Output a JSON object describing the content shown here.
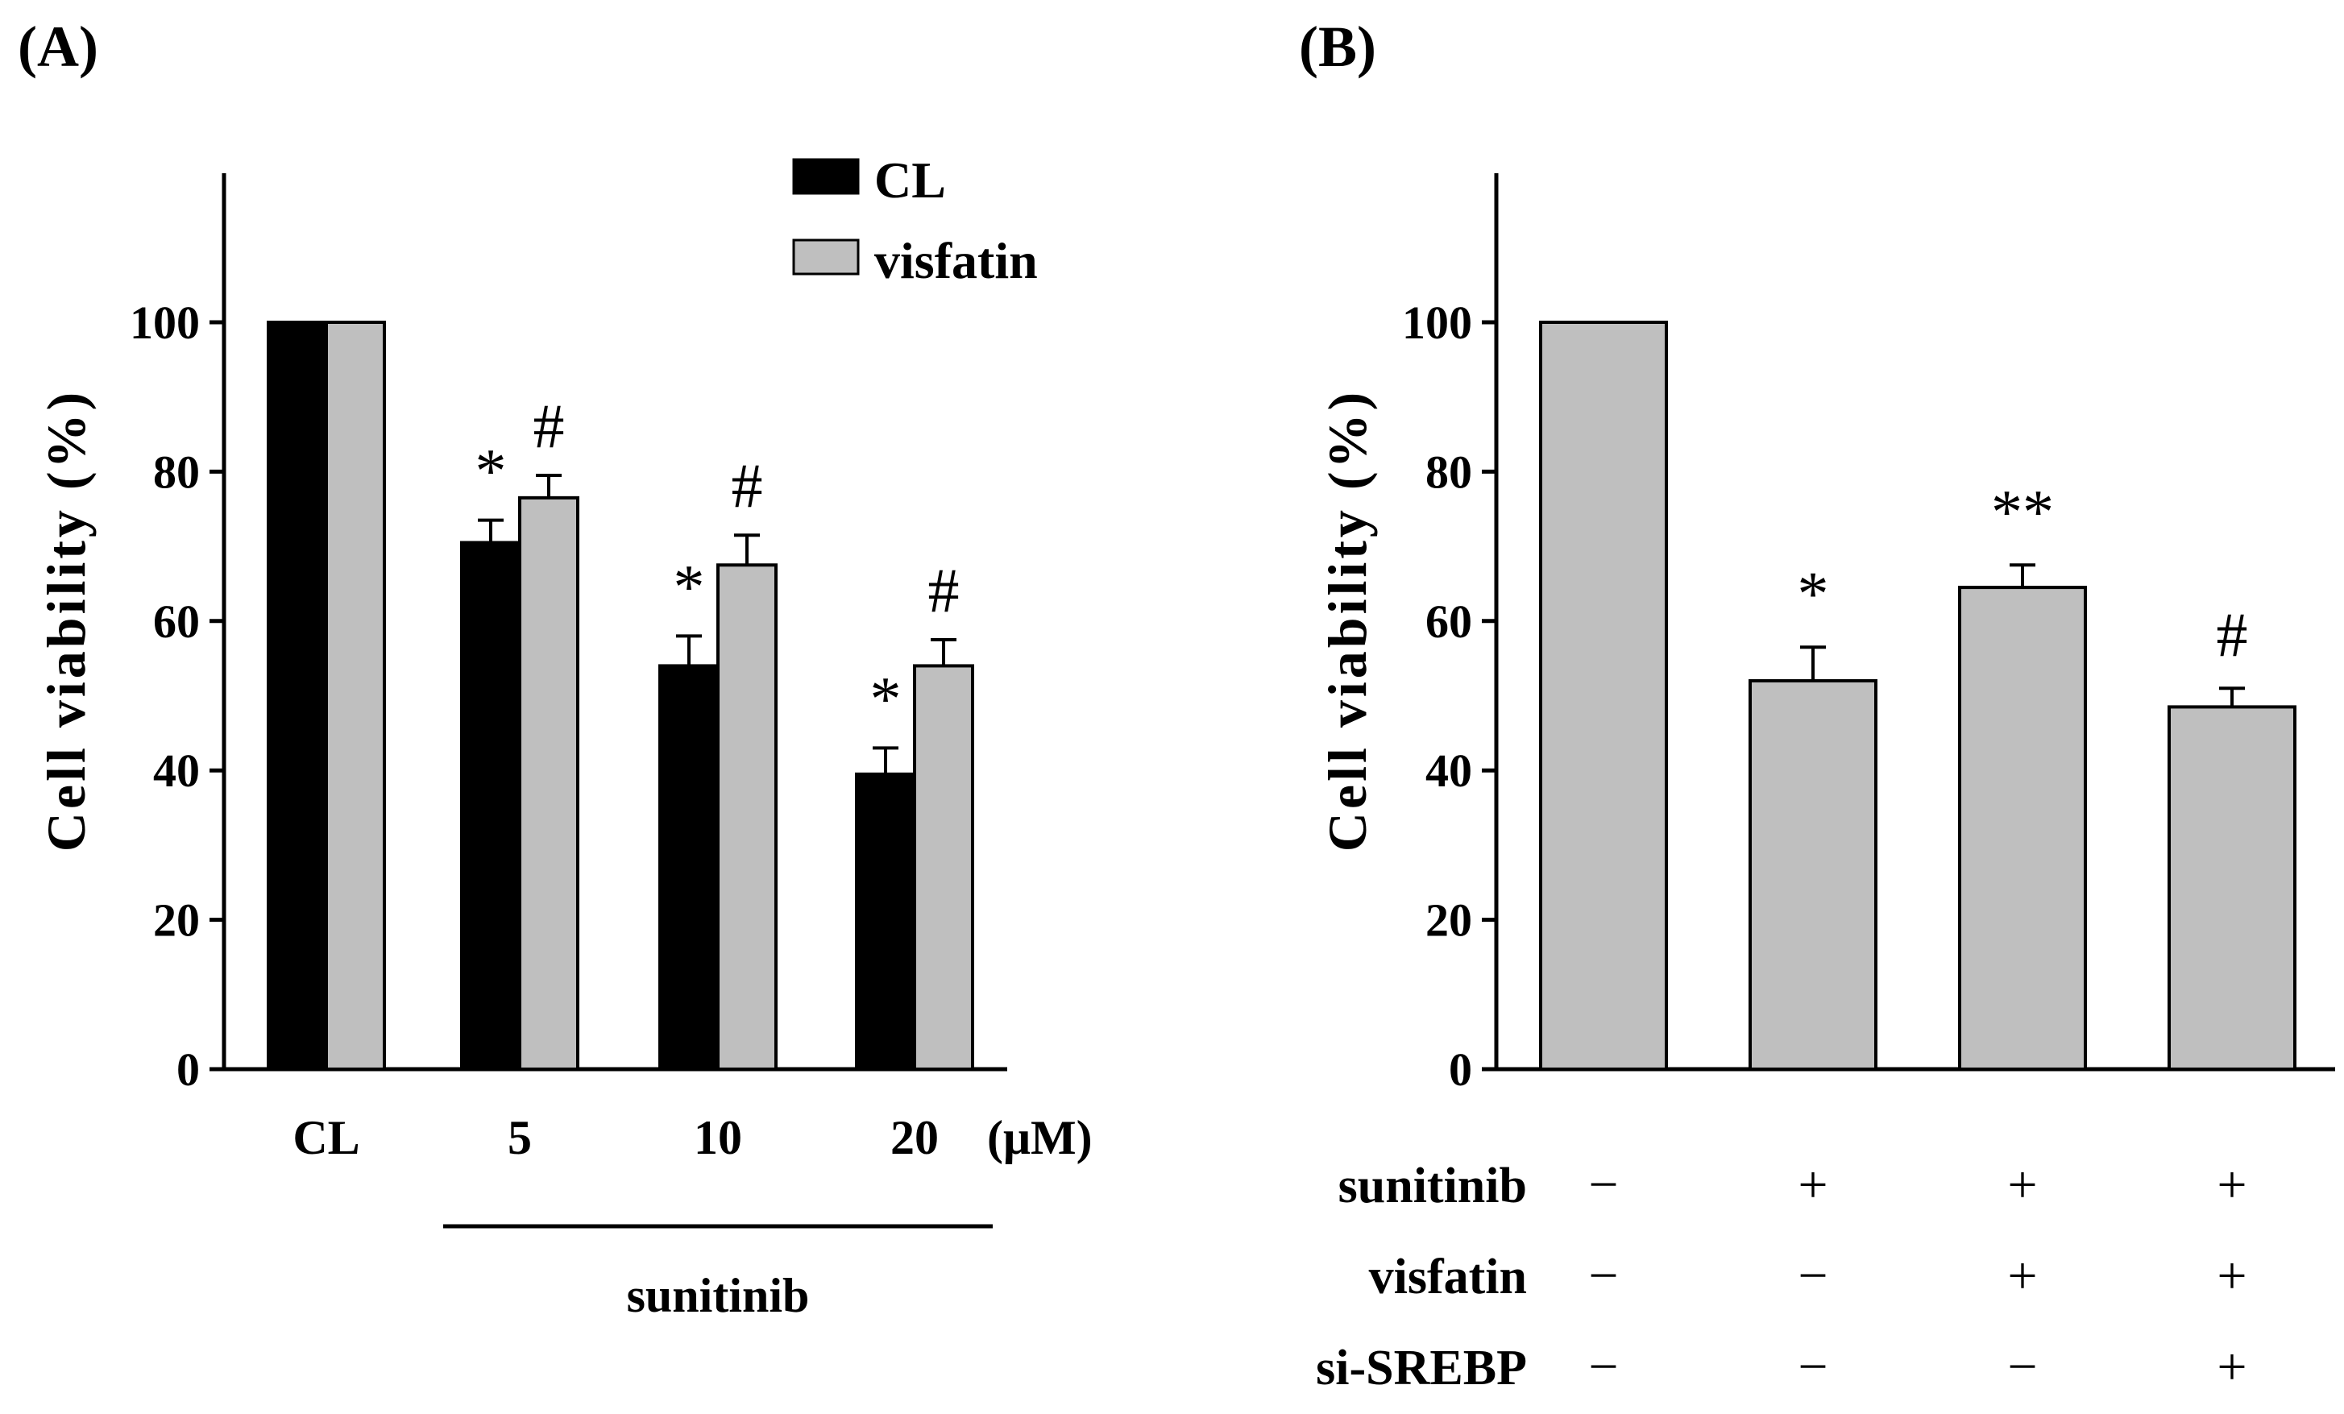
{
  "chart_data": [
    {
      "panel": "(A)",
      "type": "bar",
      "ylabel": "Cell viability (%)",
      "ylim": [
        0,
        120
      ],
      "yticks": [
        0,
        20,
        40,
        60,
        80,
        100
      ],
      "categories": [
        "CL",
        "5",
        "10",
        "20"
      ],
      "x_unit": "(μM)",
      "group_label": "sunitinib",
      "series": [
        {
          "name": "CL",
          "color": "#000000",
          "values": [
            100,
            70.5,
            54,
            39.5
          ],
          "errors": [
            0,
            3,
            4,
            3.5
          ],
          "annotations": [
            "",
            "*",
            "*",
            "*"
          ]
        },
        {
          "name": "visfatin",
          "color": "#bfbfbf",
          "values": [
            100,
            76.5,
            67.5,
            54
          ],
          "errors": [
            0,
            3,
            4,
            3.5
          ],
          "annotations": [
            "",
            "#",
            "#",
            "#"
          ]
        }
      ]
    },
    {
      "panel": "(B)",
      "type": "bar",
      "ylabel": "Cell viability (%)",
      "ylim": [
        0,
        120
      ],
      "yticks": [
        0,
        20,
        40,
        60,
        80,
        100
      ],
      "series": [
        {
          "name": "viability",
          "color": "#bfbfbf",
          "values": [
            100,
            52,
            64.5,
            48.5
          ],
          "errors": [
            0,
            4.5,
            3,
            2.5
          ],
          "annotations": [
            "",
            "*",
            "**",
            "#"
          ]
        }
      ],
      "conditions": [
        {
          "label": "sunitinib",
          "signs": [
            "−",
            "+",
            "+",
            "+"
          ]
        },
        {
          "label": "visfatin",
          "signs": [
            "−",
            "−",
            "+",
            "+"
          ]
        },
        {
          "label": "si-SREBP",
          "signs": [
            "−",
            "−",
            "−",
            "+"
          ]
        }
      ]
    }
  ]
}
